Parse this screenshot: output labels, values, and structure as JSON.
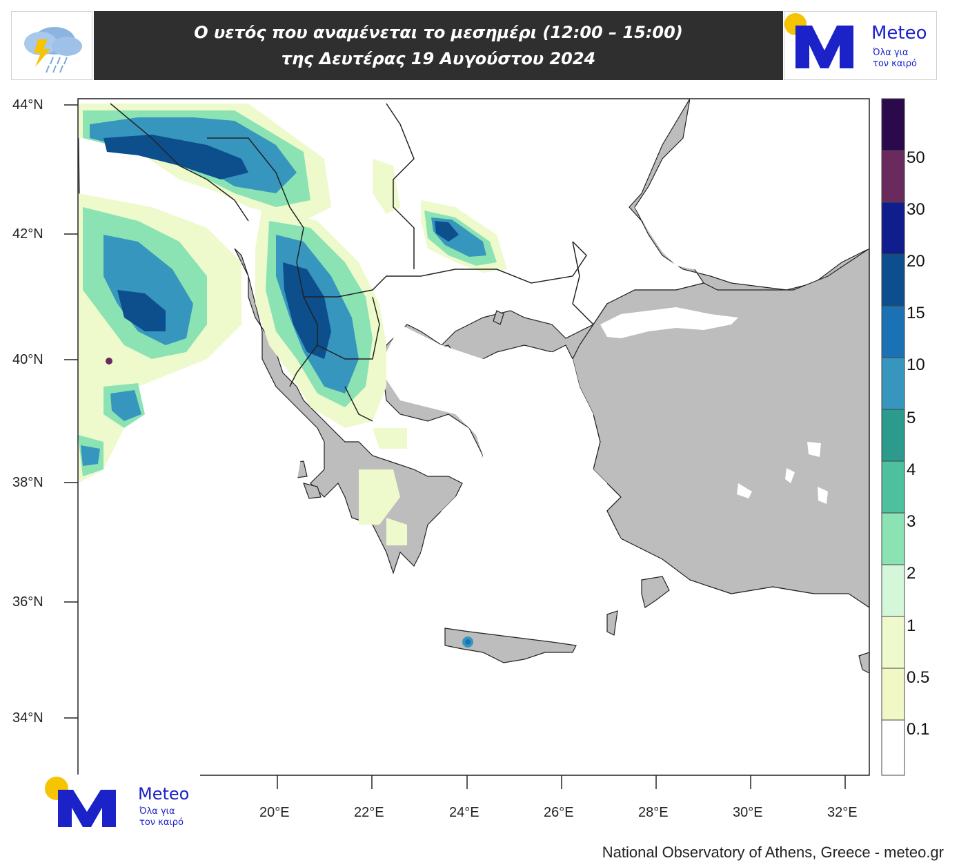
{
  "header": {
    "title_line1": "Ο υετός που αναμένεται το μεσημέρι (12:00 – 15:00)",
    "title_line2": "της Δευτέρας 19 Αυγούστου 2024",
    "weather_icon": "storm-cloud-rain-icon"
  },
  "brand": {
    "name": "Meteo",
    "tagline_1": "Όλα για",
    "tagline_2": "τον καιρό",
    "logo_letter": "M",
    "color": "#1a22c8",
    "sun_color": "#f6c400"
  },
  "map": {
    "lat_labels": [
      "44°N",
      "42°N",
      "40°N",
      "38°N",
      "36°N",
      "34°N"
    ],
    "lon_labels": [
      "20°E",
      "22°E",
      "24°E",
      "26°E",
      "28°E",
      "30°E",
      "32°E"
    ],
    "land_color": "#bdbdbd",
    "sea_color": "#ffffff"
  },
  "colorbar": {
    "labels": [
      "50",
      "30",
      "20",
      "15",
      "10",
      "5",
      "4",
      "3",
      "2",
      "1",
      "0.5",
      "0.1"
    ],
    "colors": [
      "#2a0a4a",
      "#6b2a5e",
      "#0f1e8c",
      "#0c4f8c",
      "#1a72b4",
      "#3796bd",
      "#2c9a8c",
      "#4fc09e",
      "#8be3b4",
      "#d4f7da",
      "#eef9cc",
      "#f1f8c6",
      "#ffffff"
    ]
  },
  "credit": "National Observatory of Athens, Greece - meteo.gr"
}
